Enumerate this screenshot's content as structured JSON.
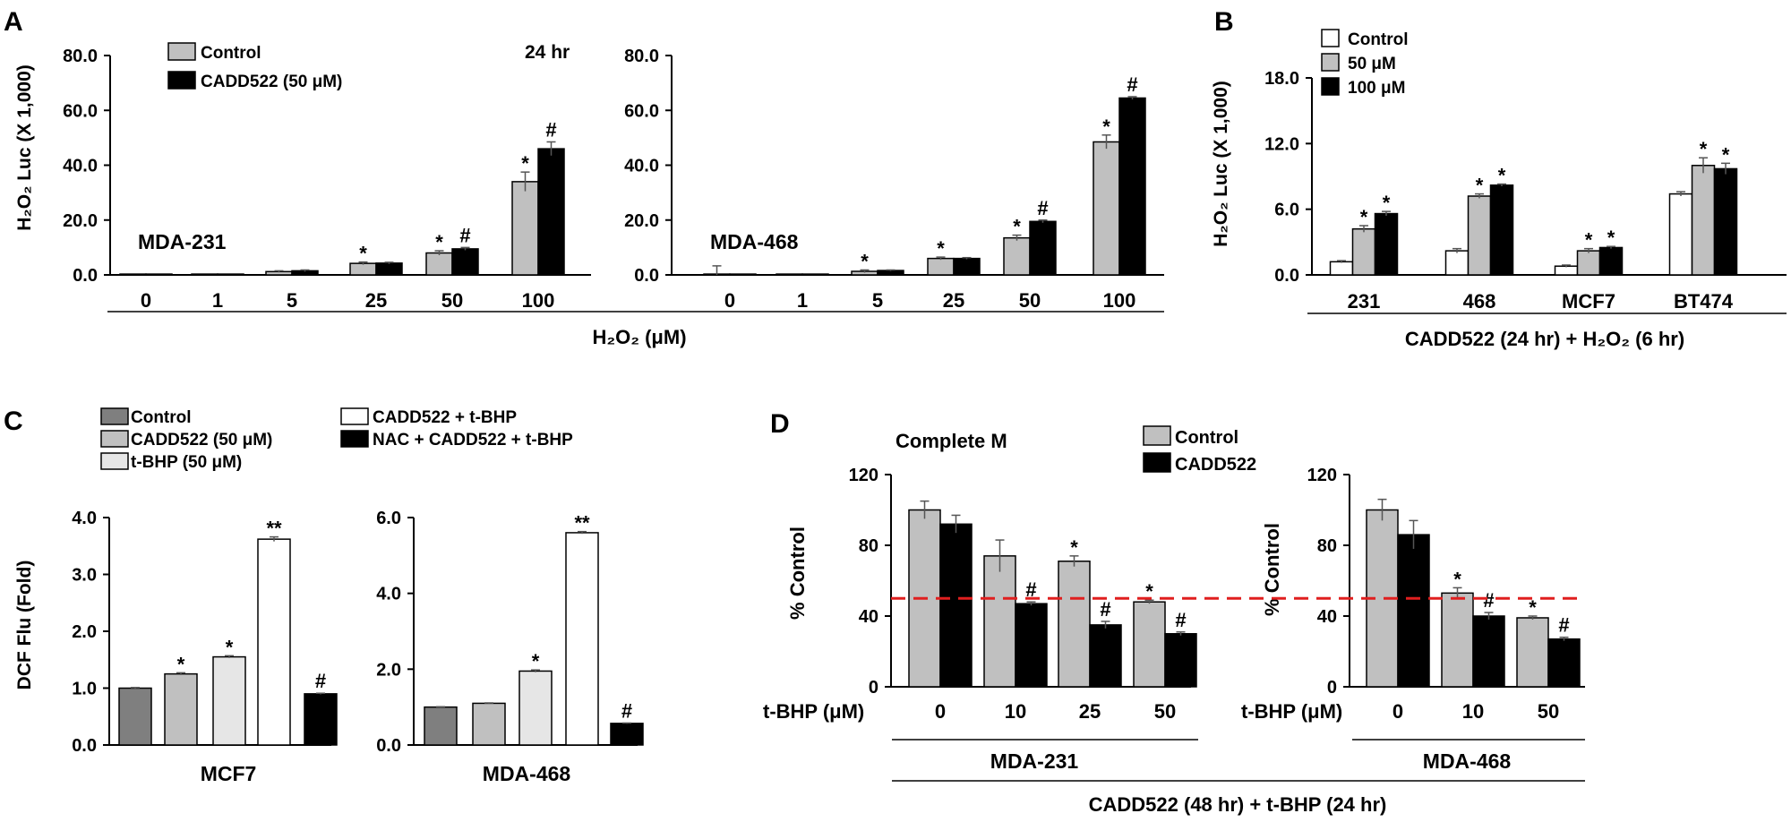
{
  "colors": {
    "control_gray": "#c0c0c0",
    "black": "#000000",
    "white": "#ffffff",
    "light_gray": "#e6e6e6",
    "dark_gray": "#7f7f7f",
    "red_dashed_line": "#e01f1f"
  },
  "panels": {
    "A": {
      "letter": "A",
      "ylabel": "H₂O₂ Luc (X 1,000)",
      "xlabel": "H₂O₂ (μM)",
      "time_label": "24 hr",
      "legend": [
        "Control",
        "CADD522 (50 μM)"
      ]
    },
    "B": {
      "letter": "B",
      "ylabel": "H₂O₂ Luc (X 1,000)",
      "xlabel": "CADD522 (24 hr) + H₂O₂ (6 hr)",
      "legend": [
        "Control",
        "50 μM",
        "100 μM"
      ]
    },
    "C": {
      "letter": "C",
      "ylabel": "DCF Flu (Fold)",
      "legend": [
        "Control",
        "CADD522 (50 μM)",
        "t-BHP (50 μM)",
        "CADD522 + t-BHP",
        "NAC + CADD522 + t-BHP"
      ]
    },
    "D": {
      "letter": "D",
      "ylabel": "% Control",
      "title": "Complete M",
      "xlabel": "CADD522 (48 hr) + t-BHP (24 hr)",
      "tbhp_label": "t-BHP (μM)",
      "legend": [
        "Control",
        "CADD522"
      ]
    }
  },
  "chart_data": [
    {
      "panel": "A",
      "type": "bar",
      "label": "MDA-231",
      "categories": [
        "0",
        "1",
        "5",
        "25",
        "50",
        "100"
      ],
      "ylim": [
        0,
        80
      ],
      "yticks": [
        "0.0",
        "20.0",
        "40.0",
        "60.0",
        "80.0"
      ],
      "series": [
        {
          "name": "Control",
          "values": [
            0.3,
            0.3,
            1.2,
            4.2,
            8.0,
            34.0
          ],
          "errors": [
            0,
            0,
            0.3,
            0.5,
            0.8,
            3.5
          ],
          "marks": [
            "",
            "",
            "",
            "*",
            "*",
            "*"
          ]
        },
        {
          "name": "CADD522 (50 μM)",
          "values": [
            0.3,
            0.3,
            1.5,
            4.3,
            9.5,
            46.0
          ],
          "errors": [
            0,
            0,
            0.3,
            0.3,
            0.5,
            2.5
          ],
          "marks": [
            "",
            "",
            "",
            "",
            "#",
            "#"
          ]
        }
      ]
    },
    {
      "panel": "A",
      "type": "bar",
      "label": "MDA-468",
      "categories": [
        "0",
        "1",
        "5",
        "25",
        "50",
        "100"
      ],
      "ylim": [
        0,
        80
      ],
      "yticks": [
        "0.0",
        "20.0",
        "40.0",
        "60.0",
        "80.0"
      ],
      "series": [
        {
          "name": "Control",
          "values": [
            0.3,
            0.3,
            1.3,
            6.0,
            13.5,
            48.5
          ],
          "errors": [
            3.0,
            0,
            0.5,
            0.5,
            1.0,
            2.5
          ],
          "marks": [
            "",
            "",
            "*",
            "*",
            "*",
            "*"
          ]
        },
        {
          "name": "CADD522 (50 μM)",
          "values": [
            0.3,
            0.3,
            1.6,
            6.0,
            19.5,
            64.5
          ],
          "errors": [
            0,
            0,
            0.2,
            0.3,
            0.5,
            0.5
          ],
          "marks": [
            "",
            "",
            "",
            "",
            "#",
            "#"
          ]
        }
      ]
    },
    {
      "panel": "B",
      "type": "bar",
      "categories": [
        "231",
        "468",
        "MCF7",
        "BT474"
      ],
      "ylim": [
        0,
        18
      ],
      "yticks": [
        "0.0",
        "6.0",
        "12.0",
        "18.0"
      ],
      "series": [
        {
          "name": "Control",
          "values": [
            1.2,
            2.2,
            0.8,
            7.4
          ],
          "errors": [
            0.1,
            0.2,
            0.1,
            0.2
          ],
          "marks": [
            "",
            "",
            "",
            ""
          ]
        },
        {
          "name": "50 μM",
          "values": [
            4.2,
            7.2,
            2.2,
            10.0
          ],
          "errors": [
            0.3,
            0.2,
            0.2,
            0.7
          ],
          "marks": [
            "*",
            "*",
            "*",
            "*"
          ]
        },
        {
          "name": "100 μM",
          "values": [
            5.6,
            8.2,
            2.5,
            9.7
          ],
          "errors": [
            0.2,
            0.1,
            0.1,
            0.5
          ],
          "marks": [
            "*",
            "*",
            "*",
            "*"
          ]
        }
      ]
    },
    {
      "panel": "C",
      "type": "bar",
      "label": "MCF7",
      "categories": [
        "Control",
        "CADD522 (50 μM)",
        "t-BHP (50 μM)",
        "CADD522 + t-BHP",
        "NAC + CADD522 + t-BHP"
      ],
      "ylim": [
        0,
        4
      ],
      "yticks": [
        "0.0",
        "1.0",
        "2.0",
        "3.0",
        "4.0"
      ],
      "values": [
        1.0,
        1.25,
        1.55,
        3.62,
        0.9
      ],
      "errors": [
        0.01,
        0.02,
        0.02,
        0.04,
        0.01
      ],
      "marks": [
        "",
        "*",
        "*",
        "**",
        "#"
      ]
    },
    {
      "panel": "C",
      "type": "bar",
      "label": "MDA-468",
      "categories": [
        "Control",
        "CADD522 (50 μM)",
        "t-BHP (50 μM)",
        "CADD522 + t-BHP",
        "NAC + CADD522 + t-BHP"
      ],
      "ylim": [
        0,
        6
      ],
      "yticks": [
        "0.0",
        "2.0",
        "4.0",
        "6.0"
      ],
      "values": [
        1.0,
        1.1,
        1.95,
        5.6,
        0.57
      ],
      "errors": [
        0.01,
        0.01,
        0.03,
        0.03,
        0.01
      ],
      "marks": [
        "",
        "",
        "*",
        "**",
        "#"
      ]
    },
    {
      "panel": "D",
      "type": "bar",
      "label": "MDA-231",
      "categories": [
        "0",
        "10",
        "25",
        "50"
      ],
      "ylim": [
        0,
        120
      ],
      "yticks": [
        "0",
        "40",
        "80",
        "120"
      ],
      "reference_line": 50,
      "series": [
        {
          "name": "Control",
          "values": [
            100,
            74,
            71,
            48
          ],
          "errors": [
            5,
            9,
            3,
            1
          ],
          "marks": [
            "",
            "",
            "*",
            "*"
          ]
        },
        {
          "name": "CADD522",
          "values": [
            92,
            47,
            35,
            30
          ],
          "errors": [
            5,
            1,
            2,
            1
          ],
          "marks": [
            "",
            "#",
            "#",
            "#"
          ]
        }
      ]
    },
    {
      "panel": "D",
      "type": "bar",
      "label": "MDA-468",
      "categories": [
        "0",
        "10",
        "50"
      ],
      "ylim": [
        0,
        120
      ],
      "yticks": [
        "0",
        "40",
        "80",
        "120"
      ],
      "reference_line": 50,
      "series": [
        {
          "name": "Control",
          "values": [
            100,
            53,
            39
          ],
          "errors": [
            6,
            3,
            1
          ],
          "marks": [
            "",
            "*",
            "*"
          ]
        },
        {
          "name": "CADD522",
          "values": [
            86,
            40,
            27
          ],
          "errors": [
            8,
            2,
            1
          ],
          "marks": [
            "",
            "#",
            "#"
          ]
        }
      ]
    }
  ]
}
